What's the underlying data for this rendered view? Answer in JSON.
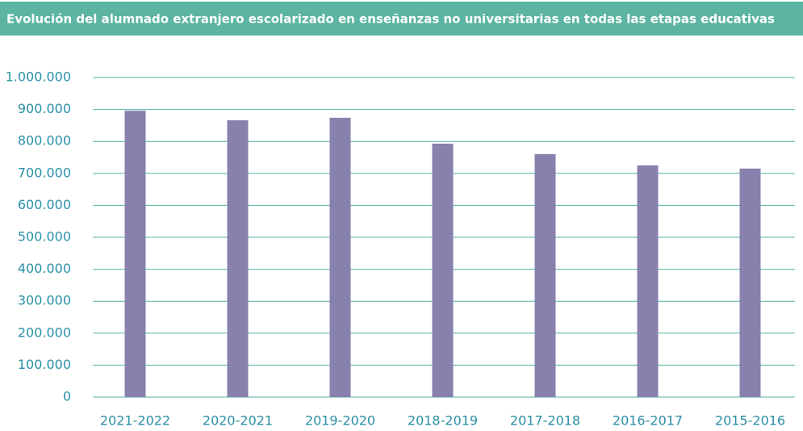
{
  "chart_data": {
    "type": "bar",
    "title": "Evolución del alumnado extranjero escolarizado en enseñanzas no universitarias en todas las etapas educativas",
    "categories": [
      "2021-2022",
      "2020-2021",
      "2019-2020",
      "2018-2019",
      "2017-2018",
      "2016-2017",
      "2015-2016"
    ],
    "values": [
      896000,
      866000,
      874000,
      793000,
      760000,
      725000,
      715000
    ],
    "color": "#8781ad",
    "ylim": [
      0,
      1000000
    ],
    "yticks": [
      0,
      {
        "value": 100000,
        "label": "100.000"
      },
      {
        "value": 200000,
        "label": "200.000"
      },
      {
        "value": 300000,
        "label": "300.000"
      },
      {
        "value": 400000,
        "label": "400.000"
      },
      {
        "value": 500000,
        "label": "500.000"
      },
      {
        "value": 600000,
        "label": "600.000"
      },
      {
        "value": 700000,
        "label": "700.000"
      },
      {
        "value": 800000,
        "label": "800.000"
      },
      {
        "value": 900000,
        "label": "900.000"
      },
      {
        "value": 1000000,
        "label": "1.000.000"
      }
    ],
    "grid": true
  }
}
